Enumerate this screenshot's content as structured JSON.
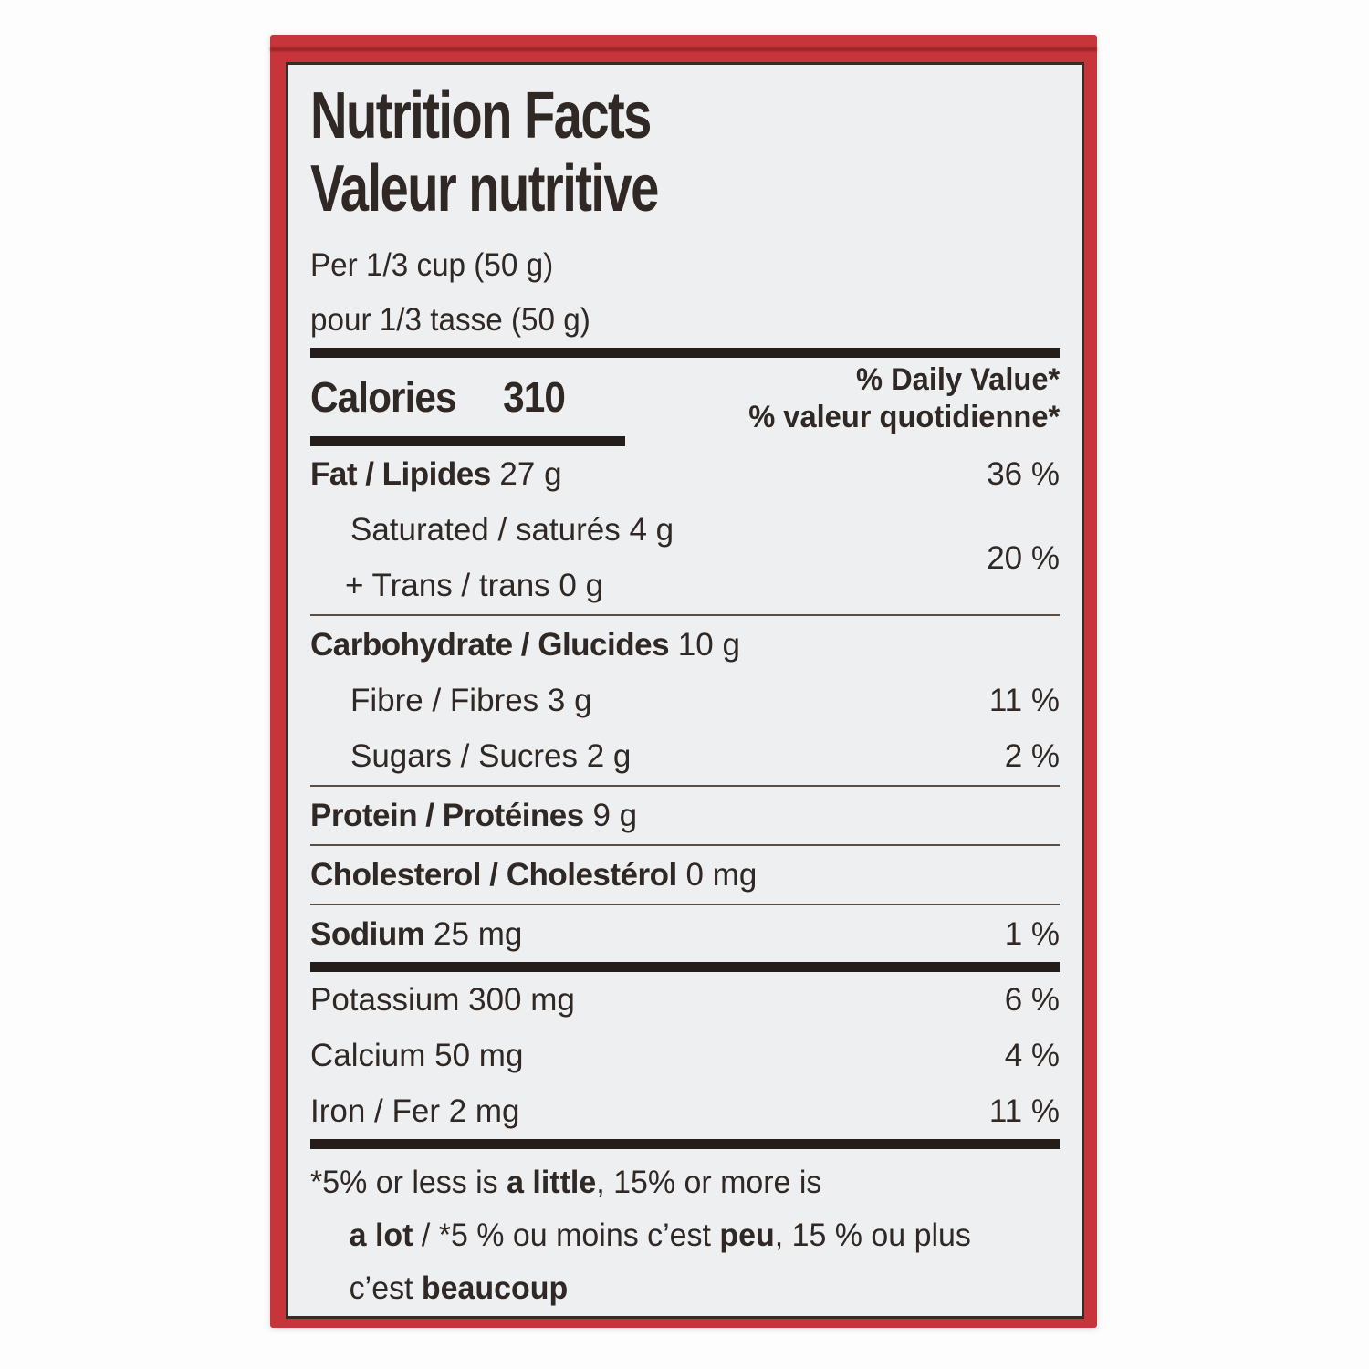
{
  "colors": {
    "box_red": "#c7343a",
    "label_bg": "#edeff0",
    "ink": "#2f2824",
    "divider_dark": "#241d19"
  },
  "header": {
    "title_en": "Nutrition Facts",
    "title_fr": "Valeur nutritive",
    "serving_en": "Per 1/3 cup (50 g)",
    "serving_fr": "pour 1/3 tasse (50 g)"
  },
  "calories": {
    "label": "Calories",
    "value": "310",
    "dv_en": "% Daily Value*",
    "dv_fr": "% valeur quotidienne*"
  },
  "nutrient_groups": [
    {
      "rows": [
        {
          "lines": [
            {
              "bold": "Fat / Lipides",
              "plain": " 27 g",
              "indent": false
            }
          ],
          "dv": "36 %"
        },
        {
          "lines": [
            {
              "bold": "",
              "plain": "Saturated / saturés 4 g",
              "indent": true
            },
            {
              "bold": "",
              "plain": "+ Trans / trans 0 g",
              "indent": true,
              "hang": true
            }
          ],
          "dv": "20 %"
        }
      ],
      "divider_after": "thin"
    },
    {
      "rows": [
        {
          "lines": [
            {
              "bold": "Carbohydrate / Glucides",
              "plain": " 10 g",
              "indent": false
            }
          ],
          "dv": ""
        },
        {
          "lines": [
            {
              "bold": "",
              "plain": "Fibre / Fibres 3 g",
              "indent": true
            }
          ],
          "dv": "11 %"
        },
        {
          "lines": [
            {
              "bold": "",
              "plain": "Sugars / Sucres 2 g",
              "indent": true
            }
          ],
          "dv": "2 %"
        }
      ],
      "divider_after": "thin"
    },
    {
      "rows": [
        {
          "lines": [
            {
              "bold": "Protein / Protéines",
              "plain": " 9 g",
              "indent": false
            }
          ],
          "dv": ""
        }
      ],
      "divider_after": "thin"
    },
    {
      "rows": [
        {
          "lines": [
            {
              "bold": "Cholesterol / Cholestérol",
              "plain": " 0 mg",
              "indent": false
            }
          ],
          "dv": ""
        }
      ],
      "divider_after": "thin"
    },
    {
      "rows": [
        {
          "lines": [
            {
              "bold": "Sodium",
              "plain": " 25 mg",
              "indent": false
            }
          ],
          "dv": "1 %"
        }
      ],
      "divider_after": "thick"
    },
    {
      "rows": [
        {
          "lines": [
            {
              "bold": "",
              "plain": "Potassium 300 mg",
              "indent": false
            }
          ],
          "dv": "6 %"
        },
        {
          "lines": [
            {
              "bold": "",
              "plain": "Calcium 50 mg",
              "indent": false
            }
          ],
          "dv": "4 %"
        },
        {
          "lines": [
            {
              "bold": "",
              "plain": "Iron / Fer 2 mg",
              "indent": false
            }
          ],
          "dv": "11 %"
        }
      ],
      "divider_after": "thick"
    }
  ],
  "footnote": {
    "lines": [
      {
        "indent": false,
        "segments": [
          {
            "text": "*5% or less is ",
            "bold": false
          },
          {
            "text": "a little",
            "bold": true
          },
          {
            "text": ", 15% or more is",
            "bold": false
          }
        ]
      },
      {
        "indent": true,
        "segments": [
          {
            "text": "a lot",
            "bold": true
          },
          {
            "text": " / *5 % ou moins c’est ",
            "bold": false
          },
          {
            "text": "peu",
            "bold": true
          },
          {
            "text": ", 15 % ou plus",
            "bold": false
          }
        ]
      },
      {
        "indent": true,
        "segments": [
          {
            "text": "c’est ",
            "bold": false
          },
          {
            "text": "beaucoup",
            "bold": true
          }
        ]
      }
    ]
  }
}
